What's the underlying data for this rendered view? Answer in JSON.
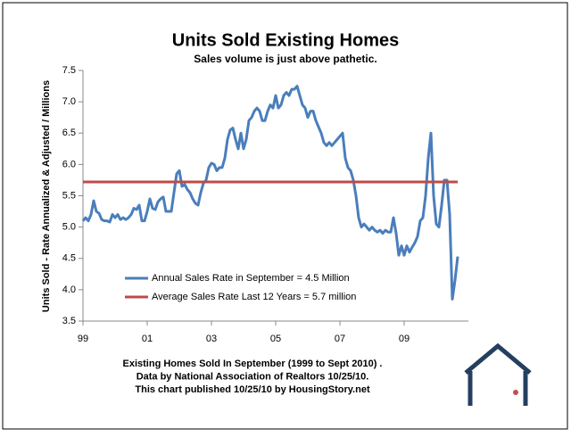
{
  "chart_data": {
    "type": "line",
    "title": "Units Sold Existing Homes",
    "subtitle": "Sales volume is just above pathetic.",
    "y_label": "Units Sold - Rate Annualized & Adjusted / Millions",
    "notes": [
      "Existing Homes Sold In September (1999 to Sept 2010) .",
      "Data by National Association of Realtors 10/25/10.",
      "This chart published 10/25/10 by HousingStory.net"
    ],
    "xlim": [
      1999,
      2011
    ],
    "xticks": [
      {
        "value": 1999,
        "label": "99"
      },
      {
        "value": 2001,
        "label": "01"
      },
      {
        "value": 2003,
        "label": "03"
      },
      {
        "value": 2005,
        "label": "05"
      },
      {
        "value": 2007,
        "label": "07"
      },
      {
        "value": 2009,
        "label": "09"
      }
    ],
    "ylim": [
      3.5,
      7.5
    ],
    "yticks": [
      3.5,
      {
        "value": 4,
        "label": "4.0"
      },
      4.5,
      {
        "value": 5,
        "label": "5.0"
      },
      5.5,
      {
        "value": 6,
        "label": "6.0"
      },
      6.5,
      {
        "value": 7,
        "label": "7.0"
      },
      7.5
    ],
    "legend": "lower-left",
    "series": [
      {
        "name": "Annual Sales Rate in September = 4.5 Million",
        "color": "#4a7ebb",
        "x": [
          1999,
          1999.083,
          1999.167,
          1999.25,
          1999.333,
          1999.417,
          1999.5,
          1999.583,
          1999.667,
          1999.75,
          1999.833,
          1999.917,
          2000,
          2000.083,
          2000.167,
          2000.25,
          2000.333,
          2000.417,
          2000.5,
          2000.583,
          2000.667,
          2000.75,
          2000.833,
          2000.917,
          2001,
          2001.083,
          2001.167,
          2001.25,
          2001.333,
          2001.417,
          2001.5,
          2001.583,
          2001.667,
          2001.75,
          2001.833,
          2001.917,
          2002,
          2002.083,
          2002.167,
          2002.25,
          2002.333,
          2002.417,
          2002.5,
          2002.583,
          2002.667,
          2002.75,
          2002.833,
          2002.917,
          2003,
          2003.083,
          2003.167,
          2003.25,
          2003.333,
          2003.417,
          2003.5,
          2003.583,
          2003.667,
          2003.75,
          2003.833,
          2003.917,
          2004,
          2004.083,
          2004.167,
          2004.25,
          2004.333,
          2004.417,
          2004.5,
          2004.583,
          2004.667,
          2004.75,
          2004.833,
          2004.917,
          2005,
          2005.083,
          2005.167,
          2005.25,
          2005.333,
          2005.417,
          2005.5,
          2005.583,
          2005.667,
          2005.75,
          2005.833,
          2005.917,
          2006,
          2006.083,
          2006.167,
          2006.25,
          2006.333,
          2006.417,
          2006.5,
          2006.583,
          2006.667,
          2006.75,
          2006.833,
          2006.917,
          2007,
          2007.083,
          2007.167,
          2007.25,
          2007.333,
          2007.417,
          2007.5,
          2007.583,
          2007.667,
          2007.75,
          2007.833,
          2007.917,
          2008,
          2008.083,
          2008.167,
          2008.25,
          2008.333,
          2008.417,
          2008.5,
          2008.583,
          2008.667,
          2008.75,
          2008.833,
          2008.917,
          2009,
          2009.083,
          2009.167,
          2009.25,
          2009.333,
          2009.417,
          2009.5,
          2009.583,
          2009.667,
          2009.75,
          2009.833,
          2009.917,
          2010,
          2010.083,
          2010.167,
          2010.25,
          2010.333,
          2010.417,
          2010.5,
          2010.583,
          2010.667
        ],
        "values": [
          5.1,
          5.15,
          5.1,
          5.2,
          5.42,
          5.25,
          5.22,
          5.12,
          5.1,
          5.1,
          5.08,
          5.2,
          5.15,
          5.2,
          5.12,
          5.15,
          5.12,
          5.15,
          5.2,
          5.3,
          5.28,
          5.35,
          5.1,
          5.1,
          5.25,
          5.45,
          5.3,
          5.28,
          5.4,
          5.45,
          5.48,
          5.25,
          5.25,
          5.25,
          5.55,
          5.85,
          5.9,
          5.65,
          5.68,
          5.6,
          5.55,
          5.45,
          5.38,
          5.35,
          5.55,
          5.7,
          5.75,
          5.95,
          6.02,
          6.0,
          5.9,
          5.95,
          5.95,
          6.1,
          6.4,
          6.55,
          6.58,
          6.4,
          6.25,
          6.5,
          6.25,
          6.4,
          6.7,
          6.75,
          6.85,
          6.9,
          6.85,
          6.7,
          6.7,
          6.85,
          6.95,
          6.9,
          7.1,
          6.9,
          6.95,
          7.1,
          7.15,
          7.1,
          7.2,
          7.2,
          7.25,
          7.1,
          6.95,
          6.9,
          6.75,
          6.85,
          6.85,
          6.7,
          6.6,
          6.5,
          6.35,
          6.3,
          6.35,
          6.3,
          6.35,
          6.4,
          6.45,
          6.5,
          6.1,
          5.95,
          5.9,
          5.75,
          5.5,
          5.15,
          5.0,
          5.05,
          5.0,
          4.95,
          5.0,
          4.95,
          4.92,
          4.95,
          4.9,
          4.95,
          4.92,
          4.92,
          5.15,
          4.9,
          4.55,
          4.7,
          4.55,
          4.7,
          4.6,
          4.68,
          4.75,
          4.85,
          5.1,
          5.15,
          5.5,
          6.1,
          6.5,
          5.5,
          5.05,
          5.0,
          5.35,
          5.75,
          5.75,
          5.2,
          3.85,
          4.15,
          4.53
        ]
      },
      {
        "name": "Average Sales Rate Last 12 Years = 5.7 million",
        "color": "#be4b48",
        "x": [
          1999,
          2010.667
        ],
        "values": [
          5.72,
          5.72
        ]
      }
    ]
  }
}
